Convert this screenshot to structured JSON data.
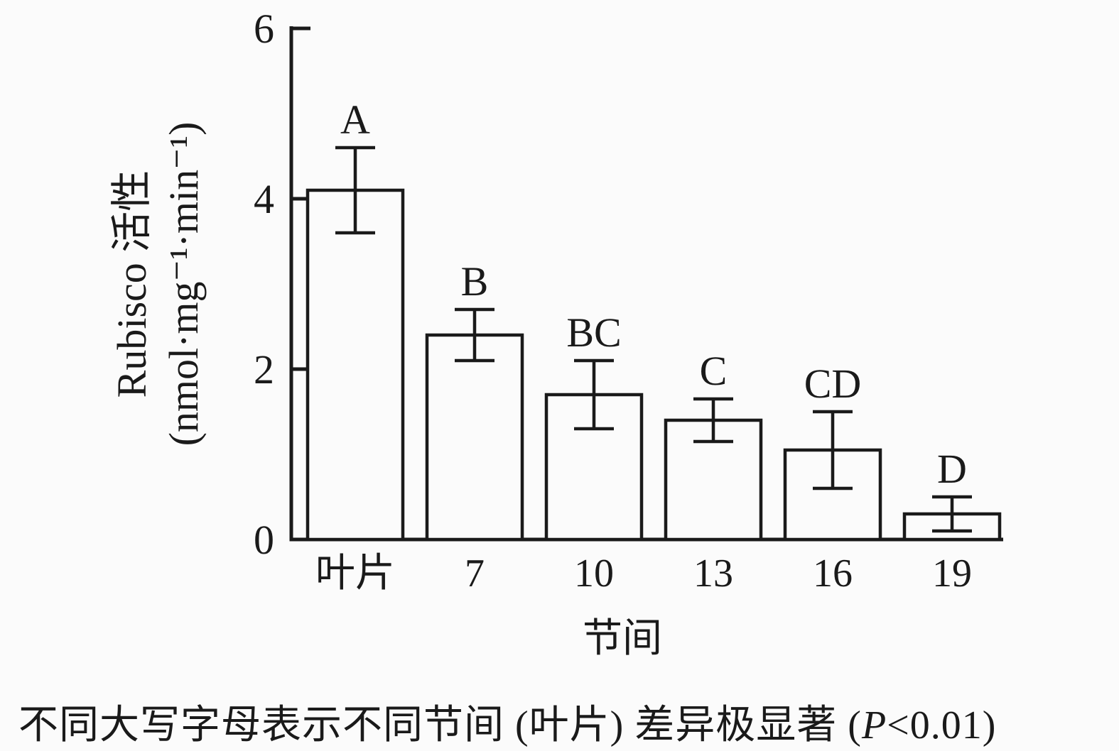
{
  "chart_data": {
    "type": "bar",
    "categories": [
      "叶片",
      "7",
      "10",
      "13",
      "16",
      "19"
    ],
    "values": [
      4.1,
      2.4,
      1.7,
      1.4,
      1.05,
      0.3
    ],
    "errors": [
      0.5,
      0.3,
      0.4,
      0.25,
      0.45,
      0.2
    ],
    "sig_letters": [
      "A",
      "B",
      "BC",
      "C",
      "CD",
      "D"
    ],
    "yticks": [
      "0",
      "2",
      "4",
      "6"
    ],
    "ytick_values": [
      0,
      2,
      4,
      6
    ],
    "ylim": [
      0,
      6
    ],
    "ylabel_line1": "Rubisco 活性",
    "ylabel_line2": "(nmol·mg⁻¹·min⁻¹)",
    "xlabel": "节间",
    "legend": null,
    "grid": false,
    "bar_fill": "#fbfbfb",
    "line_color": "#1a1a1a"
  },
  "caption": {
    "text_before_p": "不同大写字母表示不同节间 (叶片) 差异极显著 (",
    "p_symbol": "P",
    "text_after_p": "<0.01)"
  }
}
